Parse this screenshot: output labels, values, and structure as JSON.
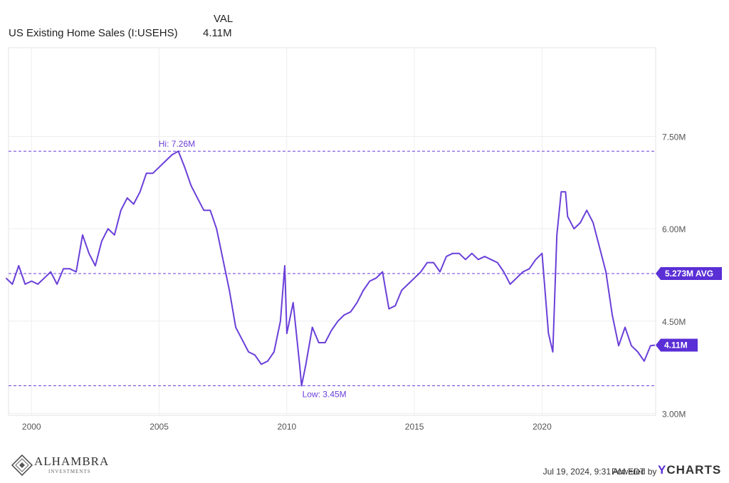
{
  "legend": {
    "column_header": "VAL",
    "series_name": "US Existing Home Sales (I:USEHS)",
    "series_value": "4.11M"
  },
  "chart_data": {
    "type": "line",
    "series": [
      {
        "name": "US Existing Home Sales (I:USEHS)",
        "x": [
          1999.0,
          1999.25,
          1999.5,
          1999.75,
          2000.0,
          2000.25,
          2000.5,
          2000.75,
          2001.0,
          2001.25,
          2001.5,
          2001.75,
          2002.0,
          2002.25,
          2002.5,
          2002.75,
          2003.0,
          2003.25,
          2003.5,
          2003.75,
          2004.0,
          2004.25,
          2004.5,
          2004.75,
          2005.0,
          2005.25,
          2005.5,
          2005.75,
          2006.0,
          2006.25,
          2006.5,
          2006.75,
          2007.0,
          2007.25,
          2007.5,
          2007.75,
          2008.0,
          2008.25,
          2008.5,
          2008.75,
          2009.0,
          2009.25,
          2009.5,
          2009.75,
          2009.92,
          2010.0,
          2010.25,
          2010.5,
          2010.58,
          2010.75,
          2011.0,
          2011.25,
          2011.5,
          2011.75,
          2012.0,
          2012.25,
          2012.5,
          2012.75,
          2013.0,
          2013.25,
          2013.5,
          2013.75,
          2014.0,
          2014.25,
          2014.5,
          2014.75,
          2015.0,
          2015.25,
          2015.5,
          2015.75,
          2016.0,
          2016.25,
          2016.5,
          2016.75,
          2017.0,
          2017.25,
          2017.5,
          2017.75,
          2018.0,
          2018.25,
          2018.5,
          2018.75,
          2019.0,
          2019.25,
          2019.5,
          2019.75,
          2020.0,
          2020.25,
          2020.42,
          2020.58,
          2020.75,
          2020.92,
          2021.0,
          2021.25,
          2021.5,
          2021.75,
          2022.0,
          2022.25,
          2022.5,
          2022.75,
          2023.0,
          2023.25,
          2023.5,
          2023.75,
          2024.0,
          2024.25,
          2024.42
        ],
        "values": [
          5.2,
          5.1,
          5.4,
          5.1,
          5.15,
          5.1,
          5.2,
          5.3,
          5.1,
          5.35,
          5.35,
          5.3,
          5.9,
          5.6,
          5.4,
          5.8,
          6.0,
          5.9,
          6.3,
          6.5,
          6.4,
          6.6,
          6.9,
          6.9,
          7.0,
          7.1,
          7.2,
          7.26,
          7.0,
          6.7,
          6.5,
          6.3,
          6.3,
          6.0,
          5.5,
          5.0,
          4.4,
          4.2,
          4.0,
          3.95,
          3.8,
          3.85,
          4.0,
          4.5,
          5.4,
          4.3,
          4.8,
          3.8,
          3.45,
          3.8,
          4.4,
          4.15,
          4.15,
          4.35,
          4.5,
          4.6,
          4.65,
          4.8,
          5.0,
          5.15,
          5.2,
          5.3,
          4.7,
          4.75,
          5.0,
          5.1,
          5.2,
          5.3,
          5.45,
          5.45,
          5.3,
          5.55,
          5.6,
          5.6,
          5.5,
          5.6,
          5.5,
          5.55,
          5.5,
          5.45,
          5.3,
          5.1,
          5.2,
          5.3,
          5.35,
          5.5,
          5.6,
          4.3,
          4.0,
          5.9,
          6.6,
          6.6,
          6.2,
          6.0,
          6.1,
          6.3,
          6.1,
          5.7,
          5.3,
          4.6,
          4.1,
          4.4,
          4.1,
          4.0,
          3.85,
          4.1,
          4.11
        ]
      }
    ],
    "x_ticks": [
      "2000",
      "2005",
      "2010",
      "2015",
      "2020"
    ],
    "x_tick_values": [
      2000,
      2005,
      2010,
      2015,
      2020
    ],
    "xlim": [
      1999.1,
      2024.45
    ],
    "y_ticks": [
      "3.00M",
      "4.50M",
      "6.00M",
      "7.50M"
    ],
    "y_tick_values": [
      3.0,
      4.5,
      6.0,
      7.5
    ],
    "ylim": [
      2.97,
      8.94
    ],
    "high_label": "Hi: 7.26M",
    "high_value": 7.26,
    "high_x": 2005.75,
    "low_label": "Low: 3.45M",
    "low_value": 3.45,
    "low_x": 2010.58,
    "avg_label": "5.273M AVG",
    "avg_value": 5.273,
    "last_label": "4.11M",
    "last_value": 4.11,
    "grid": true,
    "colors": {
      "line": "#6a3fd9",
      "ref_line": "#6a3fd9",
      "tag_bg": "#5a2fd6",
      "tag_text": "#ffffff",
      "grid": "#eeeeee"
    }
  },
  "footer": {
    "timestamp": "Jul 19, 2024, 9:31 AM EDT",
    "powered_by": "Powered by",
    "brand_y": "Y",
    "brand_rest": "CHARTS"
  },
  "logo": {
    "name": "ALHAMBRA",
    "tagline": "INVESTMENTS"
  }
}
